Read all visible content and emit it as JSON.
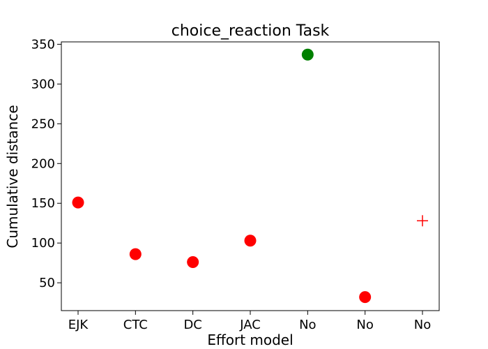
{
  "chart_data": {
    "type": "scatter",
    "title": "choice_reaction Task",
    "xlabel": "Effort model",
    "ylabel": "Cumulative distance",
    "categories": [
      "EJK",
      "CTC",
      "DC",
      "JAC",
      "No",
      "No",
      "No"
    ],
    "ylim": [
      15,
      353
    ],
    "yticks": [
      50,
      100,
      150,
      200,
      250,
      300,
      350
    ],
    "grid": false,
    "points": [
      {
        "x": "EJK",
        "y": 151,
        "marker": "circle",
        "color": "#ff0000"
      },
      {
        "x": "CTC",
        "y": 86,
        "marker": "circle",
        "color": "#ff0000"
      },
      {
        "x": "DC",
        "y": 76,
        "marker": "circle",
        "color": "#ff0000"
      },
      {
        "x": "JAC",
        "y": 103,
        "marker": "circle",
        "color": "#ff0000"
      },
      {
        "x": "No",
        "y": 337,
        "marker": "circle",
        "color": "#008000"
      },
      {
        "x": "No",
        "y": 32,
        "marker": "circle",
        "color": "#ff0000"
      },
      {
        "x": "No",
        "y": 128,
        "marker": "plus",
        "color": "#ff0000"
      }
    ]
  }
}
